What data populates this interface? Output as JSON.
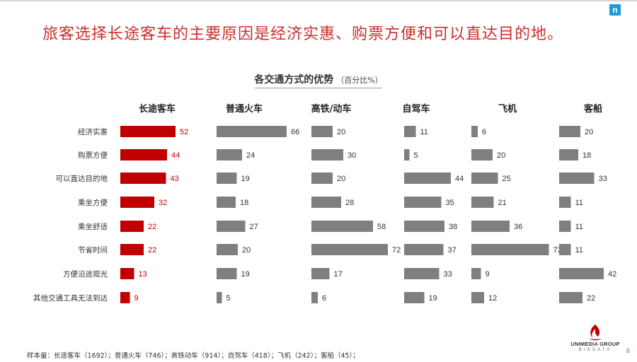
{
  "headline": "旅客选择长途客车的主要原因是经济实惠、购票方便和可以直达目的地。",
  "corner_logo": "n",
  "chart_title": "各交通方式的优势",
  "chart_unit": "（百分比%）",
  "footer_note": "样本量：长途客车（1692）；普通火车（746）；高铁动车（914）；自驾车（418）；飞机（242）；客船（45）；",
  "brand": {
    "name": "UNIMEDIA GROUP",
    "sub": "BIGDATA",
    "color": "#c00000"
  },
  "page_number": "6",
  "colors": {
    "highlight": "#c00000",
    "bar": "#7f7f7f",
    "headline": "#c9302c"
  },
  "chart_data": {
    "type": "bar",
    "orientation": "horizontal",
    "title": "各交通方式的优势",
    "unit": "（百分比%）",
    "categories": [
      "经济实惠",
      "购票方便",
      "可以直达目的地",
      "乘坐方便",
      "乘坐舒适",
      "节省时间",
      "方便沿途观光",
      "其他交通工具无法到达"
    ],
    "series": [
      {
        "name": "长途客车",
        "values": [
          52,
          44,
          43,
          32,
          22,
          22,
          13,
          9
        ],
        "color": "#c00000"
      },
      {
        "name": "普通火车",
        "values": [
          66,
          24,
          19,
          18,
          27,
          20,
          19,
          5
        ],
        "color": "#7f7f7f"
      },
      {
        "name": "高铁/动车",
        "values": [
          20,
          30,
          20,
          28,
          58,
          72,
          17,
          6
        ],
        "color": "#7f7f7f"
      },
      {
        "name": "自驾车",
        "values": [
          11,
          5,
          44,
          35,
          38,
          37,
          33,
          19
        ],
        "color": "#7f7f7f"
      },
      {
        "name": "飞机",
        "values": [
          6,
          20,
          25,
          21,
          36,
          73,
          9,
          12
        ],
        "color": "#7f7f7f"
      },
      {
        "name": "客船",
        "values": [
          20,
          18,
          33,
          11,
          11,
          11,
          42,
          22
        ],
        "color": "#7f7f7f"
      }
    ],
    "legend": "none",
    "grid": false
  }
}
